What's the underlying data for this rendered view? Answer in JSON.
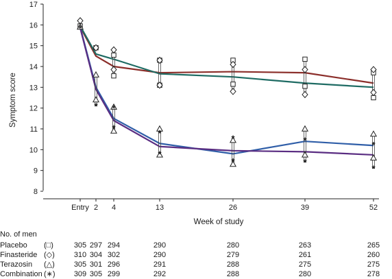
{
  "chart_data": {
    "type": "line",
    "ylabel": "Symptom score",
    "xlabel": "Week of study",
    "ylim": [
      8,
      17
    ],
    "y_ticks": [
      8,
      9,
      10,
      11,
      12,
      13,
      14,
      15,
      16,
      17
    ],
    "x_ticks": [
      "Entry",
      "2",
      "4",
      "13",
      "26",
      "39",
      "52"
    ],
    "x_week": [
      0,
      2,
      4,
      13,
      26,
      39,
      52
    ],
    "series": [
      {
        "color": "#8b2e2a",
        "values": [
          15.9,
          14.5,
          14.0,
          13.7,
          13.75,
          13.7,
          13.2
        ]
      },
      {
        "color": "#1e6b63",
        "values": [
          15.95,
          14.6,
          14.35,
          13.65,
          13.5,
          13.2,
          13.0
        ]
      },
      {
        "color": "#2f5ea8",
        "values": [
          15.9,
          13.0,
          11.5,
          10.3,
          9.8,
          10.4,
          10.2
        ]
      },
      {
        "color": "#5a2d82",
        "values": [
          15.85,
          12.9,
          11.4,
          10.15,
          9.95,
          9.9,
          9.75
        ]
      }
    ],
    "markers": {
      "placebo": [
        [
          0,
          15.95
        ],
        [
          2,
          14.9
        ],
        [
          4,
          13.55
        ],
        [
          4,
          14.55
        ],
        [
          13,
          14.3
        ],
        [
          13,
          13.1
        ],
        [
          26,
          14.3
        ],
        [
          26,
          13.15
        ],
        [
          39,
          14.35
        ],
        [
          39,
          13.05
        ],
        [
          52,
          13.7
        ],
        [
          52,
          12.5
        ]
      ],
      "finasteride": [
        [
          0,
          16.2
        ],
        [
          2,
          14.9
        ],
        [
          4,
          14.8
        ],
        [
          4,
          13.85
        ],
        [
          13,
          14.3
        ],
        [
          13,
          13.1
        ],
        [
          26,
          14.1
        ],
        [
          26,
          12.8
        ],
        [
          39,
          13.85
        ],
        [
          39,
          12.65
        ],
        [
          52,
          13.85
        ],
        [
          52,
          12.75
        ]
      ],
      "terazosin": [
        [
          0,
          15.9
        ],
        [
          2,
          13.6
        ],
        [
          2,
          12.4
        ],
        [
          4,
          12.05
        ],
        [
          4,
          10.9
        ],
        [
          13,
          11.0
        ],
        [
          13,
          9.75
        ],
        [
          26,
          10.45
        ],
        [
          26,
          9.3
        ],
        [
          39,
          11.0
        ],
        [
          39,
          9.75
        ],
        [
          52,
          10.75
        ],
        [
          52,
          9.6
        ]
      ],
      "combination": [
        [
          0,
          15.85
        ],
        [
          2,
          12.1
        ],
        [
          4,
          12.0
        ],
        [
          4,
          11.05
        ],
        [
          13,
          10.8
        ],
        [
          13,
          9.8
        ],
        [
          26,
          10.55
        ],
        [
          26,
          9.45
        ],
        [
          39,
          10.45
        ],
        [
          39,
          9.4
        ],
        [
          52,
          10.25
        ],
        [
          52,
          9.1
        ]
      ]
    }
  },
  "table": {
    "header": "No. of men",
    "rows": [
      {
        "label": "Placebo",
        "symbol": "(□)",
        "counts": [
          "305",
          "297",
          "294",
          "290",
          "280",
          "263",
          "265"
        ]
      },
      {
        "label": "Finasteride",
        "symbol": "(◇)",
        "counts": [
          "310",
          "304",
          "302",
          "290",
          "279",
          "261",
          "260"
        ]
      },
      {
        "label": "Terazosin",
        "symbol": "(△)",
        "counts": [
          "305",
          "301",
          "296",
          "291",
          "288",
          "275",
          "275"
        ]
      },
      {
        "label": "Combination",
        "symbol": "(∗)",
        "counts": [
          "309",
          "305",
          "299",
          "292",
          "288",
          "280",
          "278"
        ]
      }
    ]
  }
}
